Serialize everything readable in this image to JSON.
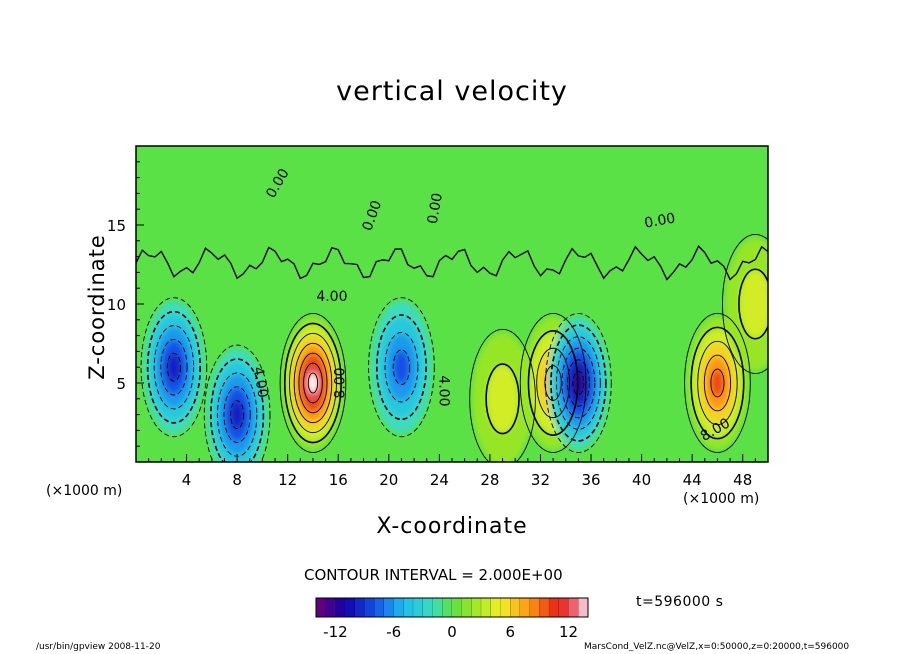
{
  "chart_data": {
    "type": "heatmap",
    "title": "vertical velocity",
    "xlabel": "X-coordinate",
    "ylabel": "Z-coordinate",
    "x_unit": "(×1000 m)",
    "xlim": [
      0,
      50
    ],
    "ylim": [
      0,
      20
    ],
    "x_ticks": [
      4,
      8,
      12,
      16,
      20,
      24,
      28,
      32,
      36,
      40,
      44,
      48
    ],
    "y_ticks": [
      5,
      10,
      15
    ],
    "contour_interval_label": "CONTOUR INTERVAL = 2.000E+00",
    "contour_labels": [
      "0.00",
      "4.00",
      "8.00"
    ],
    "colorbar": {
      "ticks": [
        -12,
        -6,
        0,
        6,
        12
      ],
      "range": [
        -14,
        14
      ]
    },
    "time_label": "t=596000 s",
    "cells": [
      {
        "x": 3,
        "z": 6,
        "w": -9
      },
      {
        "x": 8,
        "z": 3,
        "w": -10
      },
      {
        "x": 14,
        "z": 5,
        "w": 14
      },
      {
        "x": 21,
        "z": 6,
        "w": -8
      },
      {
        "x": 29,
        "z": 4,
        "w": 4
      },
      {
        "x": 33,
        "z": 5,
        "w": 8
      },
      {
        "x": 35,
        "z": 5,
        "w": -11
      },
      {
        "x": 46,
        "z": 5,
        "w": 10
      },
      {
        "x": 49,
        "z": 10,
        "w": 4
      }
    ]
  },
  "footer": {
    "left": "/usr/bin/gpview   2008-11-20",
    "right": "MarsCond_VelZ.nc@VelZ,x=0:50000,z=0:20000,t=596000"
  }
}
